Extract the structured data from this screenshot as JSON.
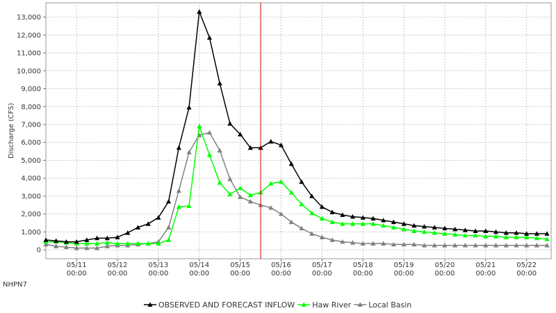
{
  "chart": {
    "station_label": "NHPN7"
  },
  "chart_data": {
    "type": "line",
    "ylabel": "Discharge (CFS)",
    "ylim": [
      -500,
      13800
    ],
    "y_ticks": [
      0,
      1000,
      2000,
      3000,
      4000,
      5000,
      6000,
      7000,
      8000,
      9000,
      10000,
      11000,
      12000,
      13000
    ],
    "y_tick_labels": [
      "0",
      "1,000",
      "2,000",
      "3,000",
      "4,000",
      "5,000",
      "6,000",
      "7,000",
      "8,000",
      "9,000",
      "10,000",
      "11,000",
      "12,000",
      "13,000"
    ],
    "x_unit": "day-index (0 = 05/11 00:00)",
    "xlim": [
      -0.75,
      11.6
    ],
    "x_ticks": [
      0,
      1,
      2,
      3,
      4,
      5,
      6,
      7,
      8,
      9,
      10,
      11
    ],
    "x_tick_dates": [
      "05/11",
      "05/12",
      "05/13",
      "05/14",
      "05/15",
      "05/16",
      "05/17",
      "05/18",
      "05/19",
      "05/20",
      "05/21",
      "05/22"
    ],
    "x_tick_times": [
      "00:00",
      "00:00",
      "00:00",
      "00:00",
      "00:00",
      "00:00",
      "00:00",
      "00:00",
      "00:00",
      "00:00",
      "00:00",
      "00:00"
    ],
    "grid": true,
    "legend_position": "bottom-center",
    "marker": "triangle",
    "forecast_line_x": 4.5,
    "forecast_line_color": "#cc0000",
    "x_points": [
      -0.75,
      -0.5,
      -0.25,
      0,
      0.25,
      0.5,
      0.75,
      1,
      1.25,
      1.5,
      1.75,
      2,
      2.25,
      2.5,
      2.75,
      3,
      3.25,
      3.5,
      3.75,
      4,
      4.25,
      4.5,
      4.75,
      5,
      5.25,
      5.5,
      5.75,
      6,
      6.25,
      6.5,
      6.75,
      7,
      7.25,
      7.5,
      7.75,
      8,
      8.25,
      8.5,
      8.75,
      9,
      9.25,
      9.5,
      9.75,
      10,
      10.25,
      10.5,
      10.75,
      11,
      11.25,
      11.5
    ],
    "series": [
      {
        "name": "OBSERVED AND FORECAST INFLOW",
        "color": "#000000",
        "values": [
          550,
          500,
          450,
          450,
          550,
          650,
          650,
          700,
          950,
          1250,
          1450,
          1800,
          2700,
          5700,
          7950,
          13300,
          11850,
          9300,
          7050,
          6450,
          5700,
          5700,
          6050,
          5850,
          4800,
          3800,
          3000,
          2400,
          2100,
          1950,
          1850,
          1800,
          1750,
          1650,
          1550,
          1450,
          1350,
          1300,
          1250,
          1200,
          1150,
          1100,
          1050,
          1050,
          1000,
          950,
          950,
          900,
          900,
          900
        ]
      },
      {
        "name": "Haw River",
        "color": "#00ff00",
        "values": [
          450,
          450,
          400,
          350,
          350,
          350,
          400,
          350,
          350,
          350,
          350,
          350,
          550,
          2400,
          2450,
          6900,
          5300,
          3750,
          3100,
          3450,
          3050,
          3200,
          3700,
          3800,
          3200,
          2550,
          2050,
          1750,
          1550,
          1450,
          1450,
          1450,
          1450,
          1350,
          1250,
          1150,
          1050,
          1000,
          950,
          900,
          850,
          800,
          800,
          750,
          750,
          700,
          700,
          700,
          650,
          600
        ]
      },
      {
        "name": "Local Basin",
        "color": "#808080",
        "values": [
          300,
          200,
          150,
          100,
          100,
          100,
          200,
          250,
          250,
          300,
          350,
          450,
          1250,
          3300,
          5450,
          6400,
          6550,
          5550,
          3950,
          2950,
          2700,
          2500,
          2350,
          2000,
          1550,
          1200,
          900,
          700,
          550,
          450,
          400,
          350,
          350,
          350,
          300,
          300,
          300,
          250,
          250,
          250,
          250,
          250,
          250,
          250,
          250,
          250,
          250,
          250,
          250,
          250
        ]
      }
    ]
  }
}
